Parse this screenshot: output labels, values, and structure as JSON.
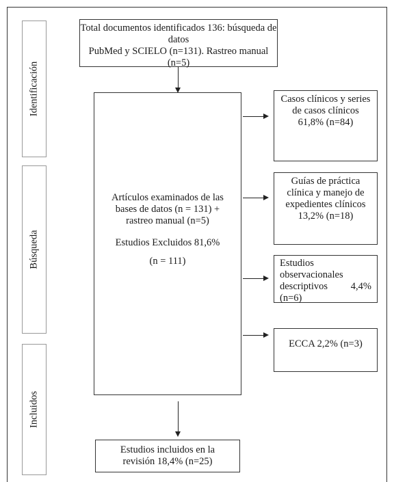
{
  "sidebar": {
    "identificacion": "Identificación",
    "busqueda": "Búsqueda",
    "incluidos": "Incluidos"
  },
  "top_box": {
    "line1": "Total documentos identificados 136: búsqueda de datos",
    "line2": "PubMed y SCIELO (n=131). Rastreo manual (n=5)"
  },
  "center_box": {
    "line1": "Artículos examinados de las",
    "line2": "bases de datos (n = 131) +",
    "line3": "rastreo manual (n=5)",
    "excluded_label": "Estudios Excluidos 81,6%",
    "excluded_n": "(n = 111)"
  },
  "right_boxes": {
    "casos": {
      "line1": "Casos clínicos y series",
      "line2": "de casos clínicos",
      "line3": "61,8% (n=84)"
    },
    "guias": {
      "line1": "Guías de práctica",
      "line2": "clínica y manejo de",
      "line3": "expedientes clínicos",
      "line4": "13,2% (n=18)"
    },
    "observacionales": {
      "line1": "Estudios",
      "line2": "observacionales",
      "line3": "descriptivos",
      "pct": "4,4%",
      "line4": "(n=6)"
    },
    "ecca": {
      "line1": "ECCA 2,2% (n=3)"
    }
  },
  "bottom_box": {
    "line1": "Estudios incluidos en la",
    "line2": "revisión 18,4% (n=25)"
  }
}
